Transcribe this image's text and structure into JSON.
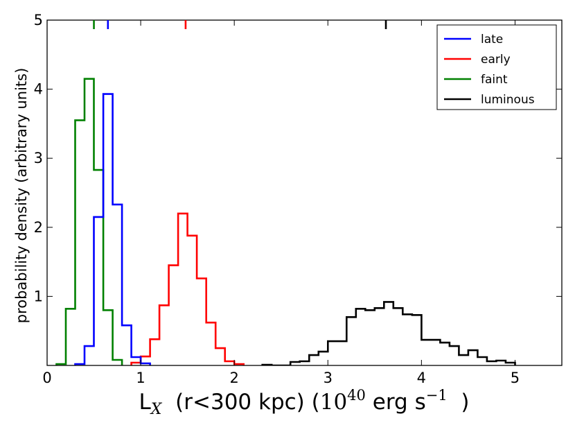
{
  "chart_data": {
    "type": "histogram",
    "title": "",
    "xlabel": {
      "prefix": "L",
      "subscript": "X",
      "middle": "  (r<300 kpc) (",
      "power_base": "10",
      "power_exp": "40",
      "unit": " erg s",
      "unit_exp": "−1",
      "suffix": "  )"
    },
    "ylabel": "probability density (arbitrary units)",
    "xlim": [
      0,
      5.5
    ],
    "ylim": [
      0,
      5
    ],
    "xticks": [
      0,
      1,
      2,
      3,
      4,
      5
    ],
    "yticks": [
      1,
      2,
      3,
      4,
      5
    ],
    "legend_position": "top-right",
    "series": [
      {
        "name": "late",
        "color": "#0000ff",
        "marker": 0.65,
        "edges": [
          0.3,
          0.4,
          0.5,
          0.6,
          0.7,
          0.8,
          0.9,
          1.0,
          1.1
        ],
        "values": [
          0.02,
          0.28,
          2.15,
          3.93,
          2.33,
          0.58,
          0.12,
          0.03
        ]
      },
      {
        "name": "early",
        "color": "#ff0000",
        "marker": 1.48,
        "edges": [
          0.9,
          1.0,
          1.1,
          1.2,
          1.3,
          1.4,
          1.5,
          1.6,
          1.7,
          1.8,
          1.9,
          2.0,
          2.1
        ],
        "values": [
          0.04,
          0.13,
          0.38,
          0.87,
          1.45,
          2.2,
          1.88,
          1.26,
          0.62,
          0.25,
          0.06,
          0.02
        ]
      },
      {
        "name": "faint",
        "color": "#008000",
        "marker": 0.5,
        "edges": [
          0.1,
          0.2,
          0.3,
          0.4,
          0.5,
          0.6,
          0.7,
          0.8
        ],
        "values": [
          0.02,
          0.82,
          3.55,
          4.15,
          2.83,
          0.8,
          0.08
        ]
      },
      {
        "name": "luminous",
        "color": "#000000",
        "marker": 3.62,
        "edges": [
          2.3,
          2.4,
          2.5,
          2.6,
          2.7,
          2.8,
          2.9,
          3.0,
          3.1,
          3.2,
          3.3,
          3.4,
          3.5,
          3.6,
          3.7,
          3.8,
          3.9,
          4.0,
          4.1,
          4.2,
          4.3,
          4.4,
          4.5,
          4.6,
          4.7,
          4.8,
          4.9,
          5.0
        ],
        "values": [
          0.01,
          0.0,
          0.0,
          0.05,
          0.06,
          0.15,
          0.2,
          0.35,
          0.35,
          0.7,
          0.82,
          0.8,
          0.83,
          0.92,
          0.83,
          0.74,
          0.73,
          0.37,
          0.37,
          0.33,
          0.28,
          0.15,
          0.22,
          0.12,
          0.06,
          0.07,
          0.04
        ]
      }
    ]
  }
}
